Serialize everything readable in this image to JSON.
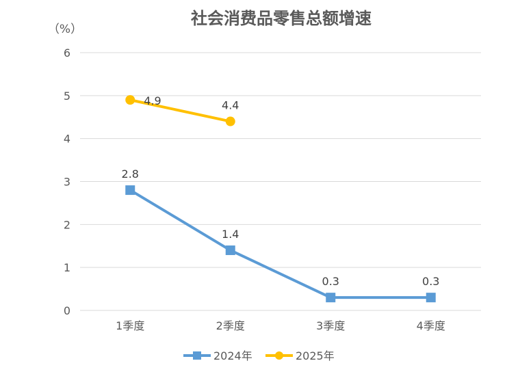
{
  "chart_data": {
    "type": "line",
    "title": "社会消费品零售总额增速",
    "unit_label": "（%）",
    "categories": [
      "1季度",
      "2季度",
      "3季度",
      "4季度"
    ],
    "ylim": [
      0,
      6
    ],
    "yticks": [
      "0",
      "1",
      "2",
      "3",
      "4",
      "5",
      "6"
    ],
    "grid": true,
    "legend_position": "bottom",
    "series": [
      {
        "name": "2024年",
        "values": [
          2.8,
          1.4,
          0.3,
          0.3
        ],
        "labels": [
          "2.8",
          "1.4",
          "0.3",
          "0.3"
        ],
        "color": "#5b9bd5",
        "marker": "square"
      },
      {
        "name": "2025年",
        "values": [
          4.9,
          4.4,
          null,
          null
        ],
        "labels": [
          "4.9",
          "4.4",
          null,
          null
        ],
        "color": "#ffc000",
        "marker": "circle"
      }
    ]
  }
}
